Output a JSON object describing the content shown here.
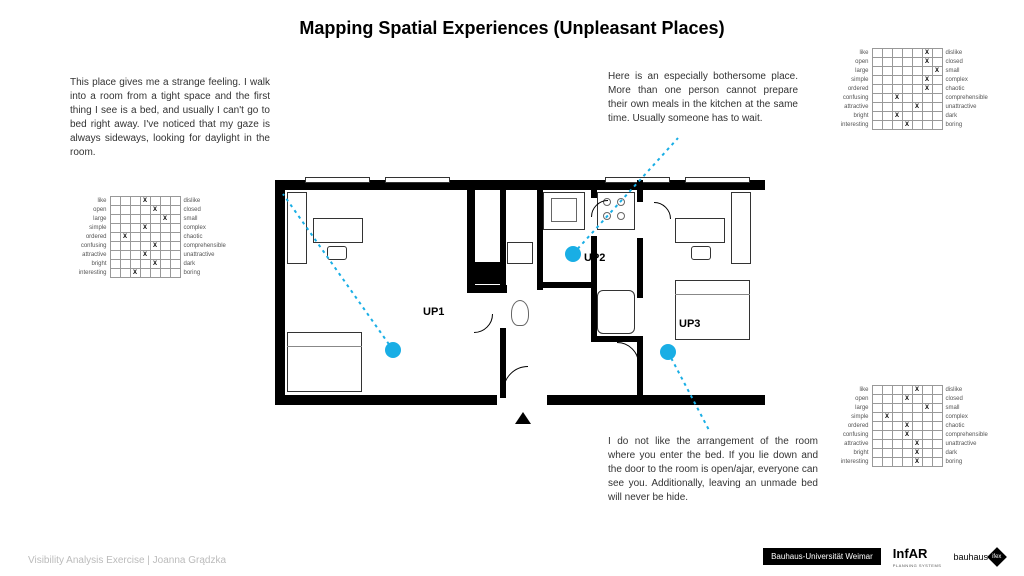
{
  "title": "Mapping Spatial Experiences (Unpleasant Places)",
  "footer_left": "Visibility Analysis Exercise | Joanna Grądzka",
  "footer_badge": "Bauhaus-Universität Weimar",
  "infar": "InfAR",
  "infar_sub": "PLANNING SYSTEMS",
  "bauhaus": "bauhaus",
  "bauhaus_sq": "ifex",
  "desc1": "This place gives me a strange feeling. I walk into a room from a tight space and the first thing I see is a bed, and usually I can't go to bed right away. I've noticed that my gaze is always sideways, looking for daylight in the room.",
  "desc2": "Here is an especially bothersome place. More than one person cannot prepare their own meals in the kitchen at the same time. Usually someone has to wait.",
  "desc3": "I do not like the arrangement of the room where you enter the bed. If you lie down and the door to the room is open/ajar, everyone can see you. Additionally, leaving an unmade bed will never be hide.",
  "marker1_label": "UP1",
  "marker2_label": "UP2",
  "marker3_label": "UP3",
  "rating_labels_left": [
    "like",
    "open",
    "large",
    "simple",
    "ordered",
    "confusing",
    "attractive",
    "bright",
    "interesting"
  ],
  "rating_labels_right": [
    "dislike",
    "closed",
    "small",
    "complex",
    "chaotic",
    "comprehensible",
    "unattractive",
    "dark",
    "boring"
  ],
  "rating1_marks": [
    3,
    4,
    5,
    3,
    1,
    4,
    3,
    4,
    2
  ],
  "rating2_marks": [
    5,
    5,
    6,
    5,
    5,
    2,
    4,
    2,
    3
  ],
  "rating3_marks": [
    4,
    3,
    5,
    1,
    3,
    3,
    4,
    4,
    4
  ],
  "accent": "#19aee5"
}
